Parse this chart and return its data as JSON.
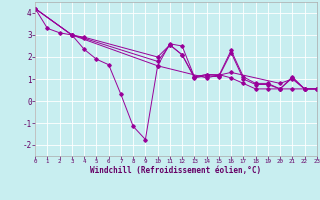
{
  "xlabel": "Windchill (Refroidissement éolien,°C)",
  "xlim": [
    0,
    23
  ],
  "ylim": [
    -2.5,
    4.5
  ],
  "yticks": [
    -2,
    -1,
    0,
    1,
    2,
    3,
    4
  ],
  "xticks": [
    0,
    1,
    2,
    3,
    4,
    5,
    6,
    7,
    8,
    9,
    10,
    11,
    12,
    13,
    14,
    15,
    16,
    17,
    18,
    19,
    20,
    21,
    22,
    23
  ],
  "background_color": "#c8eef0",
  "line_color": "#990099",
  "lines": [
    {
      "x": [
        0,
        1,
        2,
        3,
        4,
        5,
        6,
        7,
        8,
        9,
        10,
        11,
        12,
        13,
        14,
        15,
        16,
        17,
        18,
        19,
        20,
        21,
        22,
        23
      ],
      "y": [
        4.2,
        3.3,
        3.1,
        3.0,
        2.35,
        1.9,
        1.65,
        0.3,
        -1.15,
        -1.75,
        1.6,
        2.6,
        2.5,
        1.1,
        1.2,
        1.2,
        1.05,
        0.8,
        0.55,
        0.55,
        0.55,
        0.55,
        0.55,
        0.55
      ]
    },
    {
      "x": [
        0,
        3,
        4,
        10,
        11,
        12,
        13,
        14,
        15,
        16,
        17,
        18,
        19,
        20,
        21,
        22,
        23
      ],
      "y": [
        4.2,
        3.0,
        2.9,
        2.0,
        2.55,
        2.1,
        1.1,
        1.2,
        1.15,
        2.3,
        1.1,
        0.8,
        0.8,
        0.55,
        1.1,
        0.55,
        0.55
      ]
    },
    {
      "x": [
        0,
        3,
        4,
        10,
        11,
        12,
        13,
        14,
        15,
        16,
        17,
        18,
        19,
        20,
        21,
        22,
        23
      ],
      "y": [
        4.2,
        3.0,
        2.85,
        1.8,
        2.55,
        2.1,
        1.05,
        1.15,
        1.1,
        2.2,
        1.0,
        0.75,
        0.75,
        0.55,
        1.05,
        0.55,
        0.55
      ]
    },
    {
      "x": [
        0,
        3,
        10,
        14,
        16,
        20,
        21,
        22,
        23
      ],
      "y": [
        4.2,
        3.0,
        1.6,
        1.05,
        1.3,
        0.8,
        1.0,
        0.55,
        0.55
      ]
    }
  ]
}
